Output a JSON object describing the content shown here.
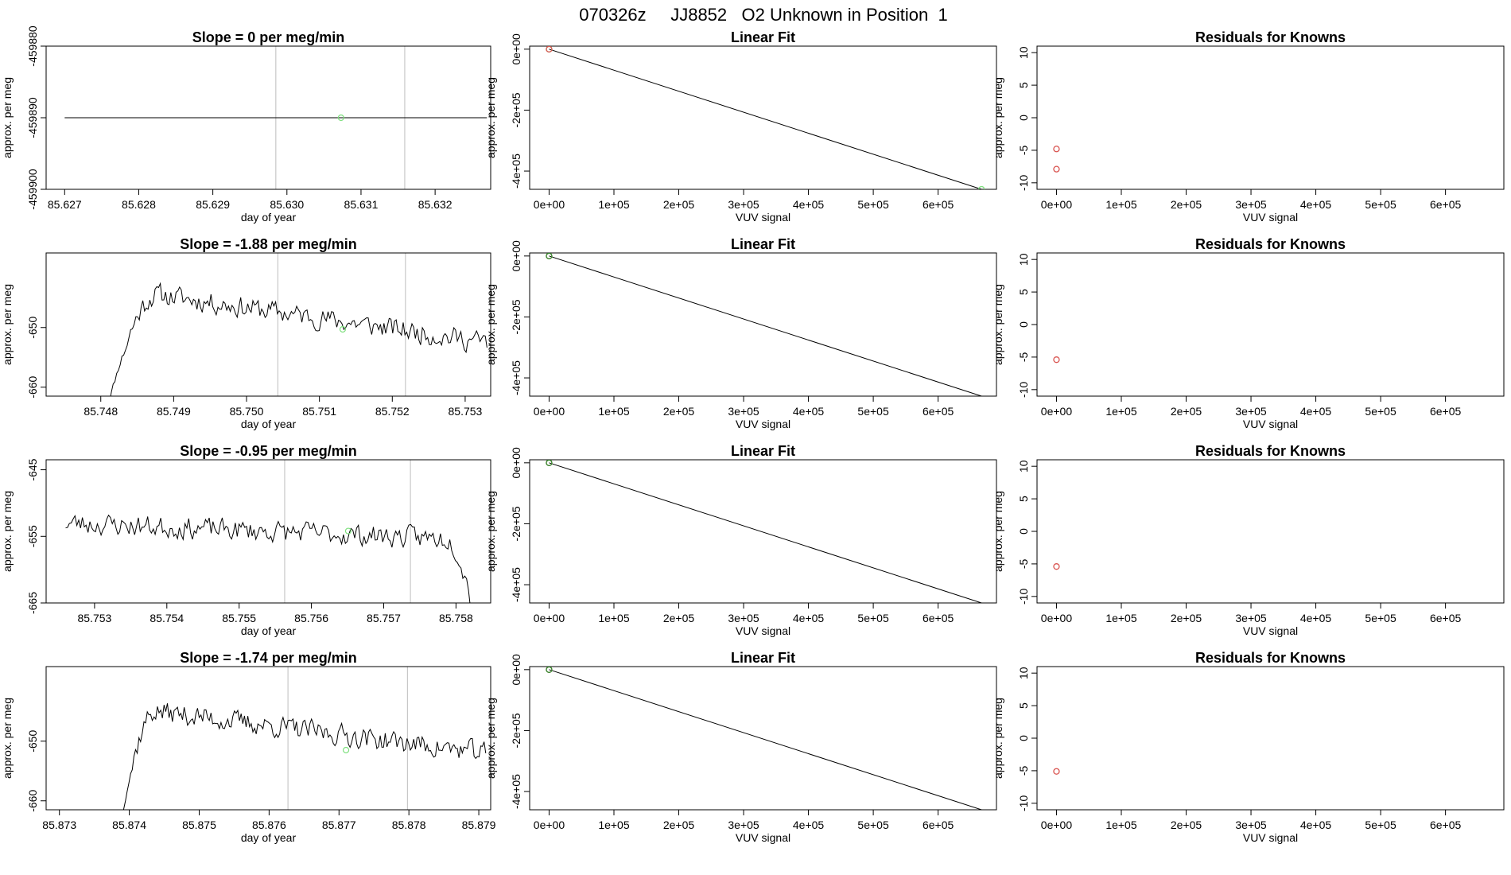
{
  "page_title": "070326z     JJ8852   O2 Unknown in Position  1",
  "chart_data": [
    {
      "type": "line",
      "panel": "timeseries",
      "row": 0,
      "title": "Slope =  0  per meg/min",
      "xlabel": "day of year",
      "ylabel": "approx. per meg",
      "xlim": [
        85.62675,
        85.63275
      ],
      "ylim": [
        -459900,
        -459880
      ],
      "xticks": [
        85.627,
        85.628,
        85.629,
        85.63,
        85.631,
        85.632
      ],
      "xtick_labels": [
        "85.627",
        "85.628",
        "85.629",
        "85.630",
        "85.631",
        "85.632"
      ],
      "yticks": [
        -459880,
        -459890,
        -459900
      ],
      "ytick_labels": [
        "-459880",
        "-459890",
        "-459900"
      ],
      "vlines": [
        85.62985,
        85.63159
      ],
      "series": [
        {
          "name": "trace",
          "x": [
            85.627,
            85.6327
          ],
          "y": [
            -459890,
            -459890
          ]
        }
      ],
      "marker": {
        "x": 85.63073,
        "y": -459890,
        "color": "#7fe07f"
      }
    },
    {
      "type": "line",
      "panel": "timeseries",
      "row": 1,
      "title": "Slope =  -1.88  per meg/min",
      "xlabel": "day of year",
      "ylabel": "approx. per meg",
      "xlim": [
        85.74725,
        85.75335
      ],
      "ylim": [
        -661.5,
        -637.5
      ],
      "xticks": [
        85.748,
        85.749,
        85.75,
        85.751,
        85.752,
        85.753
      ],
      "xtick_labels": [
        "85.748",
        "85.749",
        "85.750",
        "85.751",
        "85.752",
        "85.753"
      ],
      "yticks": [
        -650,
        -660
      ],
      "ytick_labels": [
        "-650",
        "-660"
      ],
      "vlines": [
        85.75043,
        85.75218
      ],
      "series": [
        {
          "name": "trace",
          "x_start": 85.74805,
          "x_end": 85.7533,
          "base_start": -665,
          "rise_to": -644.5,
          "rise_len": 0.14,
          "drift_end": -652.5,
          "seed": 11
        }
      ],
      "marker": {
        "x": 85.75132,
        "y": -650.3,
        "color": "#7fe07f"
      }
    },
    {
      "type": "line",
      "panel": "timeseries",
      "row": 2,
      "title": "Slope =  -0.95  per meg/min",
      "xlabel": "day of year",
      "ylabel": "approx. per meg",
      "xlim": [
        85.75233,
        85.75848
      ],
      "ylim": [
        -665,
        -643.5
      ],
      "xticks": [
        85.753,
        85.754,
        85.755,
        85.756,
        85.757,
        85.758
      ],
      "xtick_labels": [
        "85.753",
        "85.754",
        "85.755",
        "85.756",
        "85.757",
        "85.758"
      ],
      "yticks": [
        -645,
        -655,
        -665
      ],
      "ytick_labels": [
        "-645",
        "-655",
        "-665"
      ],
      "vlines": [
        85.75563,
        85.75737
      ],
      "series": [
        {
          "name": "trace",
          "x_start": 85.7526,
          "x_end": 85.75825,
          "base_start": -653,
          "drift_end": -655.5,
          "drop_at": 0.93,
          "drop_to": -667,
          "seed": 23
        }
      ],
      "marker": {
        "x": 85.75651,
        "y": -654.2,
        "color": "#7fe07f"
      }
    },
    {
      "type": "line",
      "panel": "timeseries",
      "row": 3,
      "title": "Slope =  -1.74  per meg/min",
      "xlabel": "day of year",
      "ylabel": "approx. per meg",
      "xlim": [
        85.87281,
        85.87917
      ],
      "ylim": [
        -661.5,
        -637.5
      ],
      "xticks": [
        85.873,
        85.874,
        85.875,
        85.876,
        85.877,
        85.878,
        85.879
      ],
      "xtick_labels": [
        "85.873",
        "85.874",
        "85.875",
        "85.876",
        "85.877",
        "85.878",
        "85.879"
      ],
      "yticks": [
        -650,
        -660
      ],
      "ytick_labels": [
        "-650",
        "-660"
      ],
      "vlines": [
        85.87627,
        85.87798
      ],
      "series": [
        {
          "name": "trace",
          "x_start": 85.87385,
          "x_end": 85.8791,
          "base_start": -665,
          "rise_to": -645,
          "rise_len": 0.1,
          "drift_end": -652,
          "seed": 37
        }
      ],
      "marker": {
        "x": 85.8771,
        "y": -651.5,
        "color": "#7fe07f"
      }
    },
    {
      "type": "scatter",
      "panel": "linearfit",
      "row": 0,
      "title": "Linear Fit",
      "xlabel": "VUV signal",
      "ylabel": "approx. per meg",
      "xlim": [
        -30000,
        690000
      ],
      "ylim": [
        -459900,
        10000
      ],
      "xticks": [
        0,
        100000,
        200000,
        300000,
        400000,
        500000,
        600000
      ],
      "xtick_labels": [
        "0e+00",
        "1e+05",
        "2e+05",
        "3e+05",
        "4e+05",
        "5e+05",
        "6e+05"
      ],
      "yticks": [
        0,
        -200000,
        -400000
      ],
      "ytick_labels": [
        "0e+00",
        "-2e+05",
        "-4e+05"
      ],
      "fit_line": [
        [
          0,
          0
        ],
        [
          667000,
          -459890
        ]
      ],
      "points": [
        {
          "x": 0,
          "y": 0,
          "color": "#7fe07f"
        },
        {
          "x": 0,
          "y": 0,
          "color": "#d9534f"
        },
        {
          "x": 667000,
          "y": -459890,
          "color": "#7fe07f"
        }
      ]
    },
    {
      "type": "scatter",
      "panel": "linearfit",
      "row": 1,
      "title": "Linear Fit",
      "xlabel": "VUV signal",
      "ylabel": "approx. per meg",
      "xlim": [
        -30000,
        690000
      ],
      "ylim": [
        -459900,
        10000
      ],
      "xticks": [
        0,
        100000,
        200000,
        300000,
        400000,
        500000,
        600000
      ],
      "xtick_labels": [
        "0e+00",
        "1e+05",
        "2e+05",
        "3e+05",
        "4e+05",
        "5e+05",
        "6e+05"
      ],
      "yticks": [
        0,
        -200000,
        -400000
      ],
      "ytick_labels": [
        "0e+00",
        "-2e+05",
        "-4e+05"
      ],
      "fit_line": [
        [
          0,
          0
        ],
        [
          667000,
          -459890
        ]
      ],
      "points": [
        {
          "x": 0,
          "y": 0,
          "color": "#d9534f"
        },
        {
          "x": 0,
          "y": 0,
          "color": "#2e8b2e"
        }
      ]
    },
    {
      "type": "scatter",
      "panel": "linearfit",
      "row": 2,
      "title": "Linear Fit",
      "xlabel": "VUV signal",
      "ylabel": "approx. per meg",
      "xlim": [
        -30000,
        690000
      ],
      "ylim": [
        -459900,
        10000
      ],
      "xticks": [
        0,
        100000,
        200000,
        300000,
        400000,
        500000,
        600000
      ],
      "xtick_labels": [
        "0e+00",
        "1e+05",
        "2e+05",
        "3e+05",
        "4e+05",
        "5e+05",
        "6e+05"
      ],
      "yticks": [
        0,
        -200000,
        -400000
      ],
      "ytick_labels": [
        "0e+00",
        "-2e+05",
        "-4e+05"
      ],
      "fit_line": [
        [
          0,
          0
        ],
        [
          667000,
          -459890
        ]
      ],
      "points": [
        {
          "x": 0,
          "y": 0,
          "color": "#d9534f"
        },
        {
          "x": 0,
          "y": 0,
          "color": "#2e8b2e"
        }
      ]
    },
    {
      "type": "scatter",
      "panel": "linearfit",
      "row": 3,
      "title": "Linear Fit",
      "xlabel": "VUV signal",
      "ylabel": "approx. per meg",
      "xlim": [
        -30000,
        690000
      ],
      "ylim": [
        -459900,
        10000
      ],
      "xticks": [
        0,
        100000,
        200000,
        300000,
        400000,
        500000,
        600000
      ],
      "xtick_labels": [
        "0e+00",
        "1e+05",
        "2e+05",
        "3e+05",
        "4e+05",
        "5e+05",
        "6e+05"
      ],
      "yticks": [
        0,
        -200000,
        -400000
      ],
      "ytick_labels": [
        "0e+00",
        "-2e+05",
        "-4e+05"
      ],
      "fit_line": [
        [
          0,
          0
        ],
        [
          667000,
          -459890
        ]
      ],
      "points": [
        {
          "x": 0,
          "y": 0,
          "color": "#d9534f"
        },
        {
          "x": 0,
          "y": 0,
          "color": "#2e8b2e"
        }
      ]
    },
    {
      "type": "scatter",
      "panel": "residuals",
      "row": 0,
      "title": "Residuals for Knowns",
      "xlabel": "VUV signal",
      "ylabel": "approx. per meg",
      "xlim": [
        -30000,
        690000
      ],
      "ylim": [
        -11,
        11
      ],
      "xticks": [
        0,
        100000,
        200000,
        300000,
        400000,
        500000,
        600000
      ],
      "xtick_labels": [
        "0e+00",
        "1e+05",
        "2e+05",
        "3e+05",
        "4e+05",
        "5e+05",
        "6e+05"
      ],
      "yticks": [
        10,
        5,
        0,
        -5,
        -10
      ],
      "ytick_labels": [
        "10",
        "5",
        "0",
        "-5",
        "-10"
      ],
      "points": [
        {
          "x": 0,
          "y": -4.8,
          "color": "#d9534f"
        },
        {
          "x": 0,
          "y": -7.9,
          "color": "#d9534f"
        }
      ]
    },
    {
      "type": "scatter",
      "panel": "residuals",
      "row": 1,
      "title": "Residuals for Knowns",
      "xlabel": "VUV signal",
      "ylabel": "approx. per meg",
      "xlim": [
        -30000,
        690000
      ],
      "ylim": [
        -11,
        11
      ],
      "xticks": [
        0,
        100000,
        200000,
        300000,
        400000,
        500000,
        600000
      ],
      "xtick_labels": [
        "0e+00",
        "1e+05",
        "2e+05",
        "3e+05",
        "4e+05",
        "5e+05",
        "6e+05"
      ],
      "yticks": [
        10,
        5,
        0,
        -5,
        -10
      ],
      "ytick_labels": [
        "10",
        "5",
        "0",
        "-5",
        "-10"
      ],
      "points": [
        {
          "x": 0,
          "y": -5.4,
          "color": "#d9534f"
        }
      ]
    },
    {
      "type": "scatter",
      "panel": "residuals",
      "row": 2,
      "title": "Residuals for Knowns",
      "xlabel": "VUV signal",
      "ylabel": "approx. per meg",
      "xlim": [
        -30000,
        690000
      ],
      "ylim": [
        -11,
        11
      ],
      "xticks": [
        0,
        100000,
        200000,
        300000,
        400000,
        500000,
        600000
      ],
      "xtick_labels": [
        "0e+00",
        "1e+05",
        "2e+05",
        "3e+05",
        "4e+05",
        "5e+05",
        "6e+05"
      ],
      "yticks": [
        10,
        5,
        0,
        -5,
        -10
      ],
      "ytick_labels": [
        "10",
        "5",
        "0",
        "-5",
        "-10"
      ],
      "points": [
        {
          "x": 0,
          "y": -5.4,
          "color": "#d9534f"
        }
      ]
    },
    {
      "type": "scatter",
      "panel": "residuals",
      "row": 3,
      "title": "Residuals for Knowns",
      "xlabel": "VUV signal",
      "ylabel": "approx. per meg",
      "xlim": [
        -30000,
        690000
      ],
      "ylim": [
        -11,
        11
      ],
      "xticks": [
        0,
        100000,
        200000,
        300000,
        400000,
        500000,
        600000
      ],
      "xtick_labels": [
        "0e+00",
        "1e+05",
        "2e+05",
        "3e+05",
        "4e+05",
        "5e+05",
        "6e+05"
      ],
      "yticks": [
        10,
        5,
        0,
        -5,
        -10
      ],
      "ytick_labels": [
        "10",
        "5",
        "0",
        "-5",
        "-10"
      ],
      "points": [
        {
          "x": 0,
          "y": -5.1,
          "color": "#d9534f"
        }
      ]
    }
  ]
}
